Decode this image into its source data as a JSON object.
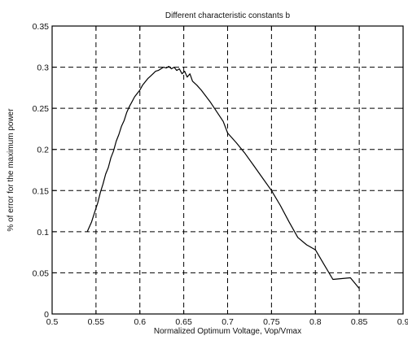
{
  "chart_data": {
    "type": "line",
    "title": "Different characteristic constants b",
    "xlabel": "Normalized Optimum Voltage, Vop/Vmax",
    "ylabel": "% of error for the maximum power",
    "xlim": [
      0.5,
      0.9
    ],
    "ylim": [
      0,
      0.35
    ],
    "xticks": [
      "0.5",
      "0.55",
      "0.6",
      "0.65",
      "0.7",
      "0.75",
      "0.8",
      "0.85",
      "0.9"
    ],
    "yticks": [
      "0",
      "0.05",
      "0.1",
      "0.15",
      "0.2",
      "0.25",
      "0.3",
      "0.35"
    ],
    "grid": true,
    "grid_style": "dashed",
    "line_color": "#000000",
    "series": [
      {
        "x": [
          0.54,
          0.545,
          0.548,
          0.552,
          0.555,
          0.558,
          0.561,
          0.564,
          0.567,
          0.57,
          0.573,
          0.576,
          0.579,
          0.582,
          0.585,
          0.588,
          0.591,
          0.594,
          0.597,
          0.6,
          0.603,
          0.606,
          0.609,
          0.612,
          0.615,
          0.618,
          0.621,
          0.624,
          0.627,
          0.63,
          0.633,
          0.636,
          0.639,
          0.642,
          0.645,
          0.648,
          0.651,
          0.654,
          0.657,
          0.66,
          0.665,
          0.67,
          0.675,
          0.68,
          0.685,
          0.69,
          0.695,
          0.7,
          0.71,
          0.72,
          0.73,
          0.74,
          0.75,
          0.76,
          0.77,
          0.78,
          0.79,
          0.8,
          0.81,
          0.82,
          0.83,
          0.84,
          0.85
        ],
        "y": [
          0.1,
          0.112,
          0.122,
          0.135,
          0.148,
          0.158,
          0.17,
          0.178,
          0.19,
          0.198,
          0.21,
          0.218,
          0.228,
          0.235,
          0.245,
          0.252,
          0.258,
          0.264,
          0.268,
          0.272,
          0.278,
          0.282,
          0.286,
          0.289,
          0.292,
          0.295,
          0.296,
          0.298,
          0.3,
          0.299,
          0.301,
          0.298,
          0.3,
          0.296,
          0.298,
          0.292,
          0.295,
          0.288,
          0.292,
          0.283,
          0.278,
          0.272,
          0.265,
          0.258,
          0.25,
          0.242,
          0.234,
          0.22,
          0.208,
          0.195,
          0.18,
          0.165,
          0.15,
          0.132,
          0.112,
          0.093,
          0.084,
          0.078,
          0.06,
          0.042,
          0.043,
          0.044,
          0.031
        ]
      }
    ]
  }
}
